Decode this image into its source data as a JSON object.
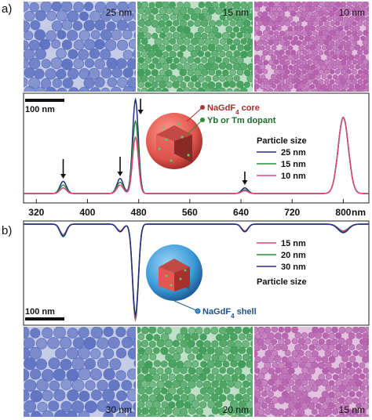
{
  "panel_a": {
    "letter": "a)",
    "images": [
      {
        "label": "25 nm",
        "color": "#5a6fc0"
      },
      {
        "label": "15 nm",
        "color": "#3c9a55"
      },
      {
        "label": "10 nm",
        "color": "#b05aa8"
      }
    ],
    "scalebar": "100 nm",
    "core_label": "NaGdF",
    "core_sub": "4",
    "core_suffix": " core",
    "dopant_label": "Yb or Tm dopant",
    "legend_title": "Particle size",
    "xaxis_unit": "nm"
  },
  "panel_b": {
    "letter": "b)",
    "images": [
      {
        "label": "30 nm",
        "color": "#5a6fc0"
      },
      {
        "label": "20 nm",
        "color": "#3c9a55"
      },
      {
        "label": "15 nm",
        "color": "#b05aa8"
      }
    ],
    "scalebar": "100 nm",
    "shell_label": "NaGdF",
    "shell_sub": "4",
    "shell_suffix": " shell",
    "legend_title": "Particle size"
  },
  "chart_data": [
    {
      "type": "line",
      "title": "",
      "xlabel": "nm",
      "ylabel": "",
      "xlim": [
        300,
        840
      ],
      "xticks": [
        320,
        400,
        480,
        560,
        640,
        720,
        800
      ],
      "legend_title": "Particle size",
      "series": [
        {
          "name": "25 nm",
          "color": "#1f2f86",
          "peaks": [
            [
              362,
              0.13
            ],
            [
              451,
              0.16
            ],
            [
              475,
              1.0
            ],
            [
              646,
              0.06
            ],
            [
              800,
              0.81
            ]
          ]
        },
        {
          "name": "15 nm",
          "color": "#2e8b3a",
          "peaks": [
            [
              362,
              0.09
            ],
            [
              451,
              0.12
            ],
            [
              475,
              0.77
            ],
            [
              646,
              0.04
            ],
            [
              800,
              0.81
            ]
          ]
        },
        {
          "name": "10 nm",
          "color": "#e0457a",
          "peaks": [
            [
              362,
              0.06
            ],
            [
              451,
              0.09
            ],
            [
              475,
              0.6
            ],
            [
              646,
              0.03
            ],
            [
              800,
              0.81
            ]
          ]
        }
      ],
      "arrows_at": [
        362,
        451,
        483,
        646
      ]
    },
    {
      "type": "line",
      "title": "",
      "xlabel": "",
      "ylabel": "",
      "xlim": [
        300,
        840
      ],
      "inverted": true,
      "legend_title": "Particle size",
      "series": [
        {
          "name": "15 nm",
          "color": "#e0457a",
          "peaks": [
            [
              362,
              0.11
            ],
            [
              451,
              0.07
            ],
            [
              475,
              1.0
            ],
            [
              646,
              0.07
            ],
            [
              800,
              0.07
            ]
          ]
        },
        {
          "name": "20 nm",
          "color": "#2e8b3a",
          "peaks": [
            [
              362,
              0.12
            ],
            [
              451,
              0.08
            ],
            [
              475,
              0.97
            ],
            [
              646,
              0.08
            ],
            [
              800,
              0.08
            ]
          ]
        },
        {
          "name": "30 nm",
          "color": "#1f2f86",
          "peaks": [
            [
              362,
              0.13
            ],
            [
              451,
              0.08
            ],
            [
              475,
              0.95
            ],
            [
              646,
              0.08
            ],
            [
              800,
              0.09
            ]
          ]
        }
      ]
    }
  ]
}
